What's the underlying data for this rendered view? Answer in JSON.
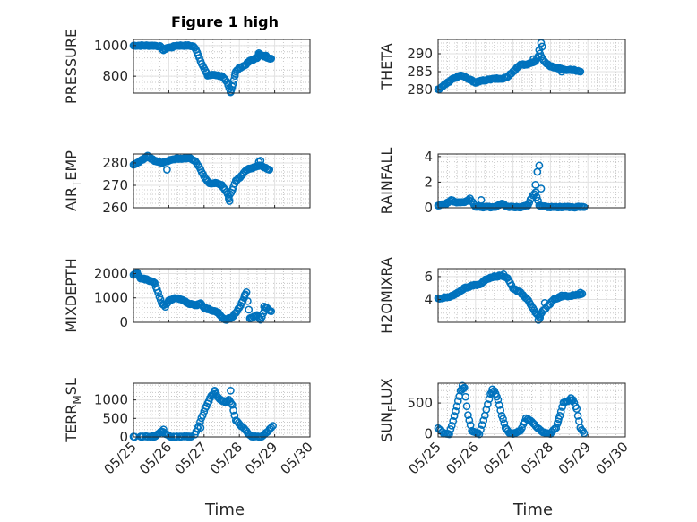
{
  "figure": {
    "title": "Figure 1 high",
    "xlabel": "Time"
  },
  "colors": {
    "marker": "#0072BD",
    "axes": "#262626",
    "grid": "#e2e2e2"
  },
  "x_tick_labels": [
    "05/25",
    "05/26",
    "05/27",
    "05/28",
    "05/29",
    "05/30"
  ],
  "chart_data": [
    {
      "type": "scatter",
      "id": "pressure",
      "ylabel": "PRESSURE",
      "title": "Figure 1 high",
      "xlim": [
        0,
        5
      ],
      "ylim": [
        690,
        1040
      ],
      "yticks": [
        800,
        1000
      ],
      "ytick_labels": [
        "800",
        "1000"
      ],
      "grid": true,
      "anchors": [
        [
          0.0,
          1000
        ],
        [
          0.3,
          1000
        ],
        [
          0.6,
          1000
        ],
        [
          0.75,
          995
        ],
        [
          0.85,
          970
        ],
        [
          0.95,
          985
        ],
        [
          1.1,
          990
        ],
        [
          1.2,
          1000
        ],
        [
          1.4,
          1000
        ],
        [
          1.55,
          1000
        ],
        [
          1.7,
          995
        ],
        [
          1.8,
          960
        ],
        [
          1.9,
          900
        ],
        [
          2.0,
          850
        ],
        [
          2.1,
          805
        ],
        [
          2.3,
          810
        ],
        [
          2.5,
          800
        ],
        [
          2.65,
          760
        ],
        [
          2.75,
          700
        ],
        [
          2.82,
          750
        ],
        [
          2.9,
          830
        ],
        [
          3.0,
          855
        ],
        [
          3.15,
          870
        ],
        [
          3.3,
          900
        ],
        [
          3.5,
          920
        ],
        [
          3.55,
          940
        ],
        [
          3.7,
          930
        ],
        [
          3.9,
          915
        ]
      ],
      "highlights": [
        [
          2.72,
          720
        ],
        [
          2.75,
          695
        ],
        [
          2.88,
          820
        ],
        [
          3.55,
          950
        ],
        [
          3.75,
          935
        ]
      ]
    },
    {
      "type": "scatter",
      "id": "theta",
      "ylabel": "THETA",
      "xlim": [
        0,
        5
      ],
      "ylim": [
        279,
        294
      ],
      "yticks": [
        280,
        285,
        290
      ],
      "ytick_labels": [
        "280",
        "285",
        "290"
      ],
      "grid": true,
      "anchors": [
        [
          0.0,
          280
        ],
        [
          0.2,
          281.5
        ],
        [
          0.4,
          283
        ],
        [
          0.6,
          284
        ],
        [
          0.8,
          283
        ],
        [
          1.0,
          282
        ],
        [
          1.2,
          282.5
        ],
        [
          1.5,
          283
        ],
        [
          1.7,
          283
        ],
        [
          1.85,
          283.5
        ],
        [
          2.0,
          285
        ],
        [
          2.2,
          287
        ],
        [
          2.4,
          287
        ],
        [
          2.6,
          288
        ],
        [
          2.72,
          290
        ],
        [
          2.82,
          288
        ],
        [
          3.0,
          286.5
        ],
        [
          3.2,
          286
        ],
        [
          3.4,
          285.5
        ],
        [
          3.6,
          285.5
        ],
        [
          3.8,
          285
        ]
      ],
      "highlights": [
        [
          2.7,
          291
        ],
        [
          2.75,
          293
        ],
        [
          2.78,
          292
        ],
        [
          2.55,
          288.5
        ],
        [
          3.3,
          285
        ]
      ]
    },
    {
      "type": "scatter",
      "id": "airtemp",
      "ylabel": "AIR_TEMP",
      "xlim": [
        0,
        5
      ],
      "ylim": [
        260,
        284
      ],
      "yticks": [
        260,
        270,
        280
      ],
      "ytick_labels": [
        "260",
        "270",
        "280"
      ],
      "grid": true,
      "anchors": [
        [
          0.0,
          279
        ],
        [
          0.2,
          281
        ],
        [
          0.4,
          283
        ],
        [
          0.6,
          281
        ],
        [
          0.8,
          280
        ],
        [
          1.0,
          281
        ],
        [
          1.2,
          282
        ],
        [
          1.4,
          282
        ],
        [
          1.6,
          282
        ],
        [
          1.75,
          281
        ],
        [
          1.9,
          277
        ],
        [
          2.0,
          274
        ],
        [
          2.15,
          271
        ],
        [
          2.35,
          271
        ],
        [
          2.5,
          270
        ],
        [
          2.6,
          268
        ],
        [
          2.7,
          265
        ],
        [
          2.8,
          268
        ],
        [
          2.9,
          272
        ],
        [
          3.05,
          274
        ],
        [
          3.2,
          277
        ],
        [
          3.4,
          278
        ],
        [
          3.6,
          279
        ],
        [
          3.85,
          277
        ]
      ],
      "highlights": [
        [
          2.7,
          264
        ],
        [
          2.72,
          263
        ],
        [
          0.95,
          277
        ],
        [
          3.55,
          280.5
        ],
        [
          3.6,
          281
        ]
      ]
    },
    {
      "type": "scatter",
      "id": "rainfall",
      "ylabel": "RAINFALL",
      "xlim": [
        0,
        5
      ],
      "ylim": [
        0,
        4.2
      ],
      "yticks": [
        0,
        2,
        4
      ],
      "ytick_labels": [
        "0",
        "2",
        "4"
      ],
      "grid": true,
      "anchors": [
        [
          0.0,
          0.2
        ],
        [
          0.2,
          0.3
        ],
        [
          0.35,
          0.6
        ],
        [
          0.5,
          0.4
        ],
        [
          0.7,
          0.4
        ],
        [
          0.85,
          0.7
        ],
        [
          1.0,
          0.1
        ],
        [
          1.2,
          0.05
        ],
        [
          1.5,
          0.05
        ],
        [
          1.7,
          0.3
        ],
        [
          1.9,
          0.05
        ],
        [
          2.2,
          0.05
        ],
        [
          2.4,
          0.2
        ],
        [
          2.5,
          0.8
        ],
        [
          2.6,
          1.2
        ],
        [
          2.7,
          0.2
        ],
        [
          2.8,
          0.1
        ],
        [
          3.0,
          0.05
        ],
        [
          3.4,
          0.05
        ],
        [
          3.9,
          0.05
        ]
      ],
      "highlights": [
        [
          2.65,
          2.8
        ],
        [
          2.7,
          3.3
        ],
        [
          2.75,
          1.5
        ],
        [
          2.6,
          1.8
        ],
        [
          1.15,
          0.6
        ]
      ]
    },
    {
      "type": "scatter",
      "id": "mixdepth",
      "ylabel": "MIXDEPTH",
      "xlim": [
        0,
        5
      ],
      "ylim": [
        0,
        2200
      ],
      "yticks": [
        0,
        1000,
        2000
      ],
      "ytick_labels": [
        "0",
        "1000",
        "2000"
      ],
      "grid": true,
      "anchors": [
        [
          0.0,
          1950
        ],
        [
          0.1,
          2000
        ],
        [
          0.2,
          1800
        ],
        [
          0.4,
          1750
        ],
        [
          0.6,
          1600
        ],
        [
          0.7,
          1200
        ],
        [
          0.8,
          800
        ],
        [
          0.9,
          650
        ],
        [
          1.0,
          900
        ],
        [
          1.2,
          1000
        ],
        [
          1.4,
          900
        ],
        [
          1.6,
          750
        ],
        [
          1.8,
          700
        ],
        [
          1.9,
          800
        ],
        [
          2.0,
          600
        ],
        [
          2.2,
          500
        ],
        [
          2.4,
          400
        ],
        [
          2.5,
          200
        ],
        [
          2.6,
          100
        ],
        [
          2.8,
          200
        ],
        [
          2.9,
          400
        ],
        [
          3.0,
          600
        ],
        [
          3.1,
          900
        ],
        [
          3.2,
          1250
        ],
        [
          3.3,
          150
        ],
        [
          3.5,
          300
        ],
        [
          3.6,
          100
        ],
        [
          3.75,
          600
        ],
        [
          3.9,
          450
        ]
      ],
      "highlights": [
        [
          0.05,
          2000
        ],
        [
          0.1,
          2050
        ],
        [
          3.15,
          1100
        ],
        [
          3.5,
          300
        ],
        [
          3.7,
          650
        ]
      ]
    },
    {
      "type": "scatter",
      "id": "h2omixra",
      "ylabel": "H2OMIXRA",
      "xlim": [
        0,
        5
      ],
      "ylim": [
        2,
        6.7
      ],
      "yticks": [
        4,
        6
      ],
      "ytick_labels": [
        "4",
        "6"
      ],
      "grid": true,
      "anchors": [
        [
          0.0,
          4.1
        ],
        [
          0.3,
          4.2
        ],
        [
          0.5,
          4.5
        ],
        [
          0.7,
          5.0
        ],
        [
          0.9,
          5.2
        ],
        [
          1.1,
          5.3
        ],
        [
          1.3,
          5.8
        ],
        [
          1.5,
          6.0
        ],
        [
          1.7,
          6.1
        ],
        [
          1.85,
          5.9
        ],
        [
          2.0,
          5.0
        ],
        [
          2.2,
          4.6
        ],
        [
          2.4,
          4.0
        ],
        [
          2.5,
          3.4
        ],
        [
          2.6,
          2.8
        ],
        [
          2.7,
          2.5
        ],
        [
          2.8,
          3.0
        ],
        [
          2.95,
          3.5
        ],
        [
          3.1,
          4.0
        ],
        [
          3.3,
          4.3
        ],
        [
          3.5,
          4.3
        ],
        [
          3.7,
          4.4
        ],
        [
          3.85,
          4.5
        ]
      ],
      "highlights": [
        [
          2.68,
          2.2
        ],
        [
          2.72,
          2.4
        ],
        [
          2.85,
          3.7
        ],
        [
          1.75,
          6.2
        ],
        [
          3.8,
          4.6
        ]
      ]
    },
    {
      "type": "scatter",
      "id": "terrmsl",
      "ylabel": "TERR_MSL",
      "xlim": [
        0,
        5
      ],
      "ylim": [
        0,
        1450
      ],
      "yticks": [
        0,
        500,
        1000
      ],
      "ytick_labels": [
        "0",
        "500",
        "1000"
      ],
      "grid": true,
      "anchors": [
        [
          0.0,
          0
        ],
        [
          0.3,
          0
        ],
        [
          0.6,
          10
        ],
        [
          0.8,
          150
        ],
        [
          0.95,
          50
        ],
        [
          1.1,
          0
        ],
        [
          1.3,
          0
        ],
        [
          1.5,
          0
        ],
        [
          1.7,
          5
        ],
        [
          1.85,
          300
        ],
        [
          2.0,
          700
        ],
        [
          2.2,
          1100
        ],
        [
          2.3,
          1200
        ],
        [
          2.45,
          1000
        ],
        [
          2.6,
          950
        ],
        [
          2.7,
          1000
        ],
        [
          2.8,
          850
        ],
        [
          2.9,
          450
        ],
        [
          3.05,
          300
        ],
        [
          3.2,
          150
        ],
        [
          3.35,
          0
        ],
        [
          3.6,
          0
        ],
        [
          3.75,
          100
        ],
        [
          3.9,
          250
        ]
      ],
      "highlights": [
        [
          2.75,
          1250
        ],
        [
          2.3,
          1250
        ],
        [
          1.9,
          250
        ],
        [
          0.85,
          200
        ],
        [
          3.95,
          300
        ]
      ]
    },
    {
      "type": "scatter",
      "id": "sunflux",
      "ylabel": "SUN_FLUX",
      "xlim": [
        0,
        5
      ],
      "ylim": [
        -50,
        820
      ],
      "yticks": [
        0,
        500
      ],
      "ytick_labels": [
        "0",
        "500"
      ],
      "grid": true,
      "anchors": [
        [
          0.0,
          100
        ],
        [
          0.15,
          10
        ],
        [
          0.3,
          0
        ],
        [
          0.4,
          200
        ],
        [
          0.5,
          450
        ],
        [
          0.6,
          700
        ],
        [
          0.7,
          750
        ],
        [
          0.8,
          300
        ],
        [
          0.9,
          50
        ],
        [
          1.0,
          20
        ],
        [
          1.1,
          0
        ],
        [
          1.25,
          300
        ],
        [
          1.4,
          650
        ],
        [
          1.5,
          700
        ],
        [
          1.6,
          550
        ],
        [
          1.7,
          300
        ],
        [
          1.8,
          100
        ],
        [
          1.9,
          20
        ],
        [
          2.0,
          0
        ],
        [
          2.2,
          50
        ],
        [
          2.35,
          250
        ],
        [
          2.5,
          200
        ],
        [
          2.65,
          100
        ],
        [
          2.8,
          20
        ],
        [
          3.0,
          0
        ],
        [
          3.15,
          100
        ],
        [
          3.25,
          300
        ],
        [
          3.35,
          500
        ],
        [
          3.5,
          550
        ],
        [
          3.6,
          550
        ],
        [
          3.7,
          400
        ],
        [
          3.8,
          100
        ],
        [
          3.9,
          10
        ]
      ],
      "highlights": [
        [
          0.65,
          780
        ],
        [
          1.45,
          720
        ],
        [
          3.55,
          580
        ],
        [
          3.2,
          200
        ],
        [
          2.4,
          240
        ]
      ]
    }
  ]
}
